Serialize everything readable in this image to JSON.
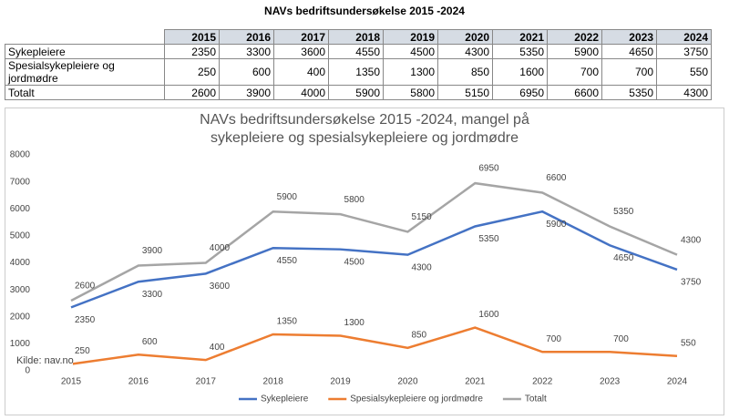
{
  "table": {
    "title": "NAVs bedriftsundersøkelse 2015 -2024",
    "header": [
      "2015",
      "2016",
      "2017",
      "2018",
      "2019",
      "2020",
      "2021",
      "2022",
      "2023",
      "2024"
    ],
    "rows": [
      [
        "Sykepleiere",
        2350,
        3300,
        3600,
        4550,
        4500,
        4300,
        5350,
        5900,
        4650,
        3750
      ],
      [
        "Spesialsykepleiere og jordmødre",
        250,
        600,
        400,
        1350,
        1300,
        850,
        1600,
        700,
        700,
        550
      ],
      [
        "Totalt",
        2600,
        3900,
        4000,
        5900,
        5800,
        5150,
        6950,
        6600,
        5350,
        4300
      ]
    ]
  },
  "chart_data": {
    "type": "line",
    "title": "NAVs bedriftsundersøkelse 2015 -2024, mangel på sykepleiere og spesialsykepleiere og jordmødre",
    "categories": [
      "2015",
      "2016",
      "2017",
      "2018",
      "2019",
      "2020",
      "2021",
      "2022",
      "2023",
      "2024"
    ],
    "series": [
      {
        "name": "Sykepleiere",
        "color": "#4472c4",
        "values": [
          2350,
          3300,
          3600,
          4550,
          4500,
          4300,
          5350,
          5900,
          4650,
          3750
        ]
      },
      {
        "name": "Spesialsykepleiere og jordmødre",
        "color": "#ed7d31",
        "values": [
          250,
          600,
          400,
          1350,
          1300,
          850,
          1600,
          700,
          700,
          550
        ]
      },
      {
        "name": "Totalt",
        "color": "#a5a5a5",
        "values": [
          2600,
          3900,
          4000,
          5900,
          5800,
          5150,
          6950,
          6600,
          5350,
          4300
        ]
      }
    ],
    "ylim": [
      0,
      8000
    ],
    "yticks": [
      0,
      1000,
      2000,
      3000,
      4000,
      5000,
      6000,
      7000,
      8000
    ],
    "grid": false,
    "legend": "bottom",
    "source": "Kilde: nav.no"
  }
}
